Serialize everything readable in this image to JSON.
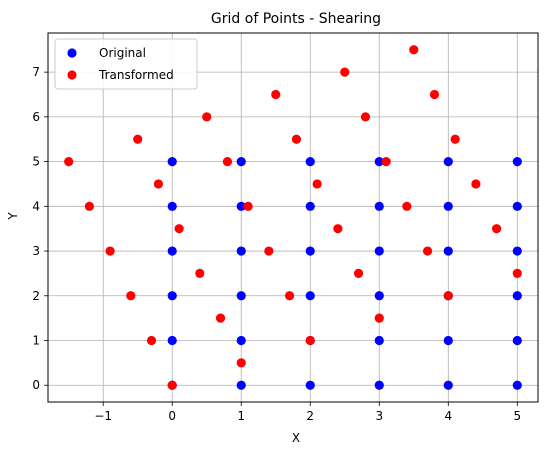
{
  "chart_data": {
    "type": "scatter",
    "title": "Grid of Points - Shearing",
    "xlabel": "X",
    "ylabel": "Y",
    "xlim": [
      -1.8,
      5.3
    ],
    "ylim": [
      -0.375,
      7.875
    ],
    "xticks": [
      -1,
      0,
      1,
      2,
      3,
      4,
      5
    ],
    "yticks": [
      0,
      1,
      2,
      3,
      4,
      5,
      6,
      7
    ],
    "grid": true,
    "legend_position": "top-left",
    "series": [
      {
        "name": "Original",
        "color": "#0000ff",
        "points": [
          [
            0,
            0
          ],
          [
            0,
            1
          ],
          [
            0,
            2
          ],
          [
            0,
            3
          ],
          [
            0,
            4
          ],
          [
            0,
            5
          ],
          [
            1,
            0
          ],
          [
            1,
            1
          ],
          [
            1,
            2
          ],
          [
            1,
            3
          ],
          [
            1,
            4
          ],
          [
            1,
            5
          ],
          [
            2,
            0
          ],
          [
            2,
            1
          ],
          [
            2,
            2
          ],
          [
            2,
            3
          ],
          [
            2,
            4
          ],
          [
            2,
            5
          ],
          [
            3,
            0
          ],
          [
            3,
            1
          ],
          [
            3,
            2
          ],
          [
            3,
            3
          ],
          [
            3,
            4
          ],
          [
            3,
            5
          ],
          [
            4,
            0
          ],
          [
            4,
            1
          ],
          [
            4,
            2
          ],
          [
            4,
            3
          ],
          [
            4,
            4
          ],
          [
            4,
            5
          ],
          [
            5,
            0
          ],
          [
            5,
            1
          ],
          [
            5,
            2
          ],
          [
            5,
            3
          ],
          [
            5,
            4
          ],
          [
            5,
            5
          ]
        ]
      },
      {
        "name": "Transformed",
        "color": "#ff0000",
        "points": [
          [
            0,
            0
          ],
          [
            -0.3,
            1
          ],
          [
            -0.6,
            2
          ],
          [
            -0.9,
            3
          ],
          [
            -1.2,
            4
          ],
          [
            -1.5,
            5
          ],
          [
            1,
            0.5
          ],
          [
            0.7,
            1.5
          ],
          [
            0.4,
            2.5
          ],
          [
            0.1,
            3.5
          ],
          [
            -0.2,
            4.5
          ],
          [
            -0.5,
            5.5
          ],
          [
            2,
            1
          ],
          [
            1.7,
            2
          ],
          [
            1.4,
            3
          ],
          [
            1.1,
            4
          ],
          [
            0.8,
            5
          ],
          [
            0.5,
            6
          ],
          [
            3,
            1.5
          ],
          [
            2.7,
            2.5
          ],
          [
            2.4,
            3.5
          ],
          [
            2.1,
            4.5
          ],
          [
            1.8,
            5.5
          ],
          [
            1.5,
            6.5
          ],
          [
            4,
            2
          ],
          [
            3.7,
            3
          ],
          [
            3.4,
            4
          ],
          [
            3.1,
            5
          ],
          [
            2.8,
            6
          ],
          [
            2.5,
            7
          ],
          [
            5,
            2.5
          ],
          [
            4.7,
            3.5
          ],
          [
            4.4,
            4.5
          ],
          [
            4.1,
            5.5
          ],
          [
            3.8,
            6.5
          ],
          [
            3.5,
            7.5
          ]
        ]
      }
    ]
  }
}
